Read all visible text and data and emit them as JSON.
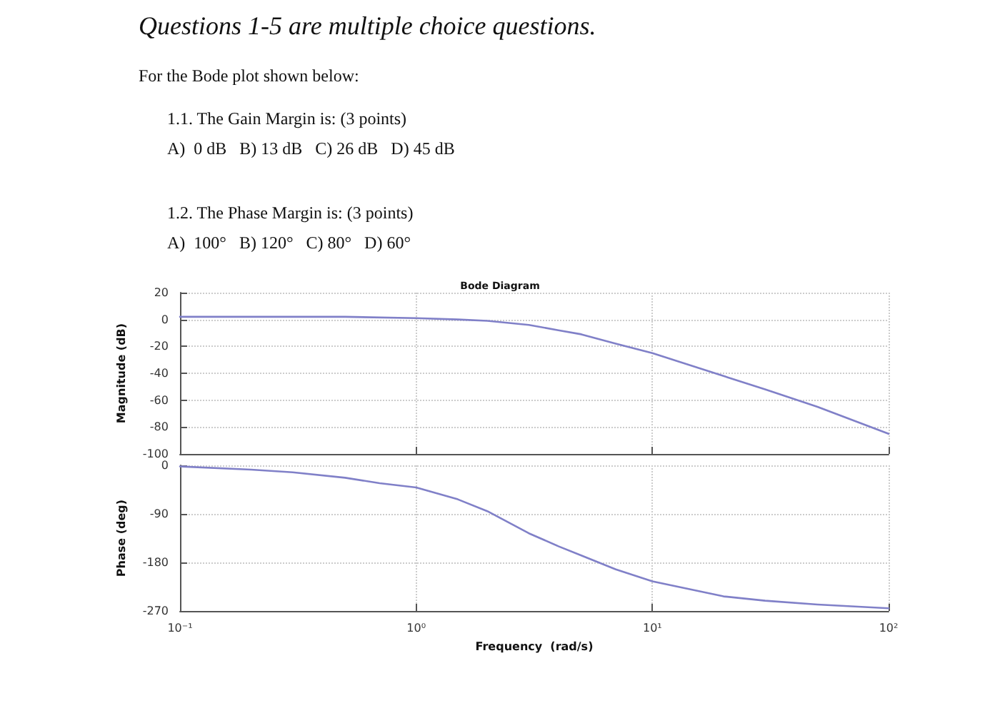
{
  "chart_data": [
    {
      "type": "line",
      "title": "Bode Diagram",
      "ylabel": "Magnitude (dB)",
      "annotations": [
        "Questions 1-5 are multiple choice questions.",
        "For the Bode plot shown below:",
        "1.1. The Gain Margin is: (3 points)",
        "A)  0 dB   B) 13 dB   C) 26 dB   D) 45 dB",
        "1.2. The Phase Margin is: (3 points)",
        "A)  100°   B) 120°   C) 80°   D) 60°"
      ],
      "x": [
        0.1,
        0.3,
        0.5,
        1,
        1.5,
        2,
        3,
        4,
        5,
        7,
        10,
        20,
        30,
        50,
        100
      ],
      "series": [
        {
          "color": "#8080c8",
          "values": [
            2,
            2,
            2,
            1,
            0,
            -1,
            -4,
            -8,
            -11,
            -18,
            -25,
            -42,
            -52,
            -65,
            -85
          ]
        }
      ],
      "xlim": [
        0.1,
        100
      ],
      "xticks": [
        0.1,
        1,
        10,
        100
      ],
      "ylim": [
        -100,
        20
      ],
      "yticks": [
        20,
        0,
        -20,
        -40,
        -60,
        -80,
        -100
      ],
      "log": "x",
      "grid": true,
      "tick_labels": "y",
      "marker": "none",
      "line_style": "solid"
    },
    {
      "type": "line",
      "ylabel": "Phase (deg)",
      "xlabel": "Frequency  (rad/s)",
      "x": [
        0.1,
        0.2,
        0.3,
        0.5,
        0.7,
        1,
        1.5,
        2,
        3,
        4,
        5,
        7,
        10,
        20,
        30,
        50,
        100
      ],
      "series": [
        {
          "color": "#8080c8",
          "values": [
            -2,
            -8,
            -13,
            -23,
            -33,
            -41,
            -63,
            -85,
            -126,
            -150,
            -167,
            -193,
            -215,
            -243,
            -251,
            -258,
            -265
          ]
        }
      ],
      "xlim": [
        0.1,
        100
      ],
      "xticks": [
        {
          "value": 0.1,
          "label": "10⁻¹"
        },
        {
          "value": 1,
          "label": "10⁰"
        },
        {
          "value": 10,
          "label": "10¹"
        },
        {
          "value": 100,
          "label": "10²"
        }
      ],
      "ylim": [
        -270,
        0
      ],
      "yticks": [
        0,
        -90,
        -180,
        -270
      ],
      "log": "x",
      "grid": true,
      "marker": "none",
      "line_style": "solid"
    }
  ]
}
